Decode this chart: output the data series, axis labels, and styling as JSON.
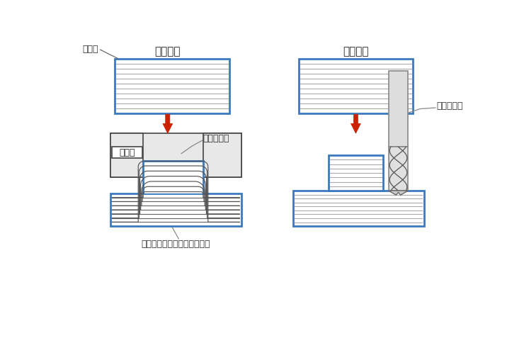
{
  "bg_color": "#ffffff",
  "blue_color": "#3a7abf",
  "gray_fill": "#e8e8e8",
  "line_color": "#444444",
  "red_color": "#cc2200",
  "title_forging": "》鍛造《",
  "title_cutting": "》切削《",
  "label_work": "ワーク",
  "label_highstrength": "高強度",
  "label_die": "金型で加圧",
  "label_endmill": "エンドミル",
  "label_fiberflow": "ファイバーフロー（鍛流線）",
  "fig_width": 7.4,
  "fig_height": 4.84,
  "dpi": 100
}
